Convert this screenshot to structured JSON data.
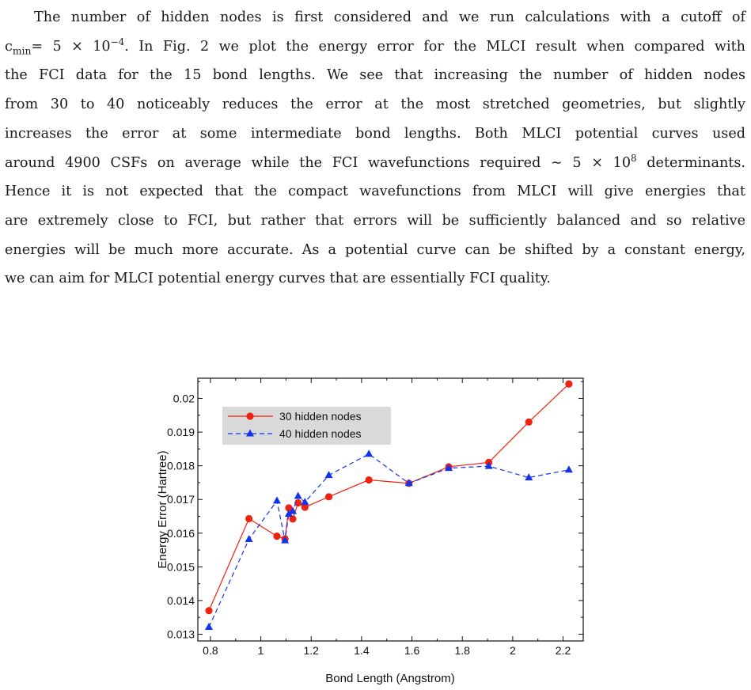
{
  "paragraph": {
    "l1": "The number of hidden nodes is first considered and we run calculations with a cutoff of",
    "l2_cmin": "c",
    "l2_sub": "min",
    "l2_eq": "= 5 × 10",
    "l2_exp": "−4",
    "l2_rest": ". In Fig. 2 we plot the energy error for the MLCI result when compared with",
    "l3": "the FCI data for the 15 bond lengths. We see that increasing the number of hidden nodes",
    "l4": "from 30 to 40 noticeably reduces the error at the most stretched geometries, but slightly",
    "l5": "increases the error at some intermediate bond lengths. Both MLCI potential curves used",
    "l6_a": "around 4900 CSFs on average while the FCI wavefunctions required ∼ 5 × 10",
    "l6_exp": "8",
    "l6_b": " determinants.",
    "l7": "Hence it is not expected that the compact wavefunctions from MLCI will give energies that",
    "l8": "are extremely close to FCI, but rather that errors will be sufficiently balanced and so relative",
    "l9": "energies will be much more accurate. As a potential curve can be shifted by a constant energy,",
    "l10": "we can aim for MLCI potential energy curves that are essentially FCI quality."
  },
  "chart_data": {
    "type": "line",
    "xlabel": "Bond Length (Angstrom)",
    "ylabel": "Energy Error (Hartree)",
    "xlim": [
      0.75,
      2.28
    ],
    "ylim": [
      0.0128,
      0.0206
    ],
    "xticks": [
      0.8,
      1.0,
      1.2,
      1.4,
      1.6,
      1.8,
      2.0,
      2.2
    ],
    "xtick_labels": [
      "0.8",
      "1",
      "1.2",
      "1.4",
      "1.6",
      "1.8",
      "2",
      "2.2"
    ],
    "yticks": [
      0.013,
      0.014,
      0.015,
      0.016,
      0.017,
      0.018,
      0.019,
      0.02
    ],
    "ytick_labels": [
      "0.013",
      "0.014",
      "0.015",
      "0.016",
      "0.017",
      "0.018",
      "0.019",
      "0.02"
    ],
    "legend_position": "top-left",
    "series": [
      {
        "name": "30 hidden nodes",
        "color": "#ee2211",
        "marker": "circle",
        "dash": "solid",
        "x": [
          0.794,
          0.953,
          1.064,
          1.096,
          1.111,
          1.127,
          1.148,
          1.175,
          1.27,
          1.429,
          1.588,
          1.746,
          1.905,
          2.064,
          2.223
        ],
        "y": [
          0.0137,
          0.01643,
          0.01591,
          0.01583,
          0.01675,
          0.01642,
          0.0169,
          0.01677,
          0.01708,
          0.01758,
          0.01748,
          0.01797,
          0.0181,
          0.0193,
          0.02043
        ]
      },
      {
        "name": "40 hidden nodes",
        "color": "#1133ee",
        "marker": "triangle",
        "dash": "dashed",
        "x": [
          0.794,
          0.953,
          1.064,
          1.096,
          1.111,
          1.127,
          1.148,
          1.175,
          1.27,
          1.429,
          1.588,
          1.746,
          1.905,
          2.064,
          2.223
        ],
        "y": [
          0.01321,
          0.01582,
          0.01696,
          0.01578,
          0.01657,
          0.01665,
          0.0171,
          0.01692,
          0.01772,
          0.01835,
          0.01748,
          0.01793,
          0.01799,
          0.01765,
          0.01788
        ]
      }
    ]
  }
}
